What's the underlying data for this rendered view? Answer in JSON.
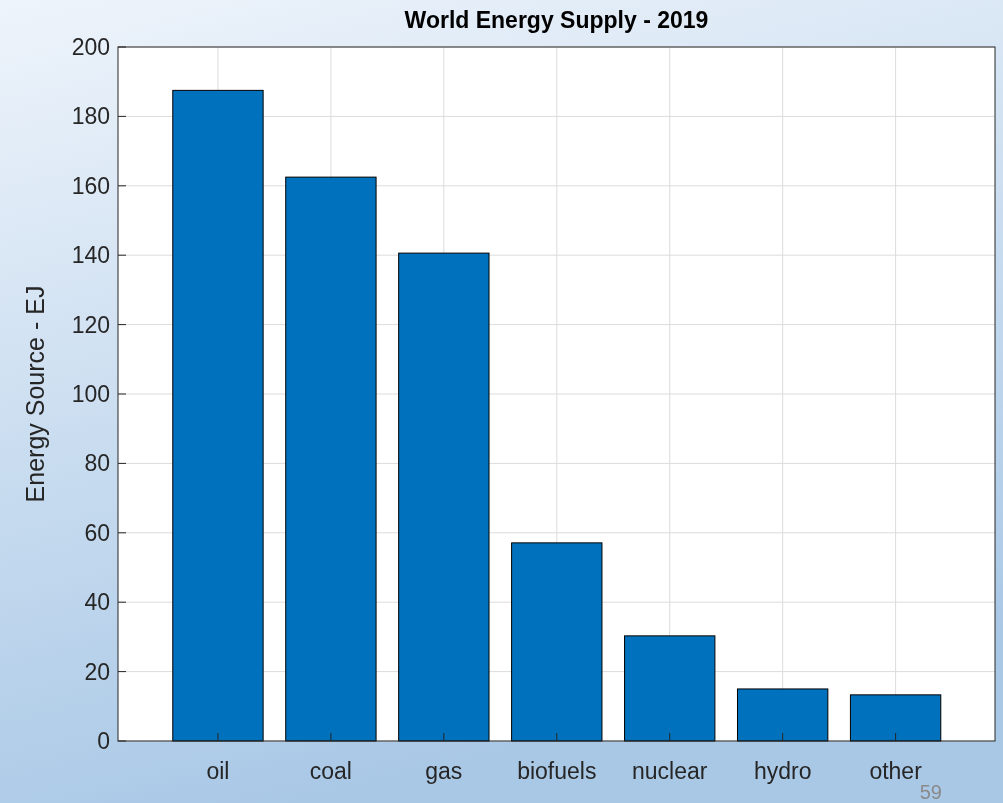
{
  "chart_data": {
    "type": "bar",
    "title": "World Energy Supply - 2019",
    "ylabel": "Energy Source - EJ",
    "categories": [
      "oil",
      "coal",
      "gas",
      "biofuels",
      "nuclear",
      "hydro",
      "other"
    ],
    "values": [
      187.5,
      162.5,
      140.6,
      57.1,
      30.3,
      15,
      13.3
    ],
    "color": "#0072bd",
    "ylim": [
      0,
      200
    ],
    "yticks": [
      0,
      20,
      40,
      60,
      80,
      100,
      120,
      140,
      160,
      180,
      200
    ],
    "grid": true,
    "annotations": [
      "59"
    ]
  }
}
